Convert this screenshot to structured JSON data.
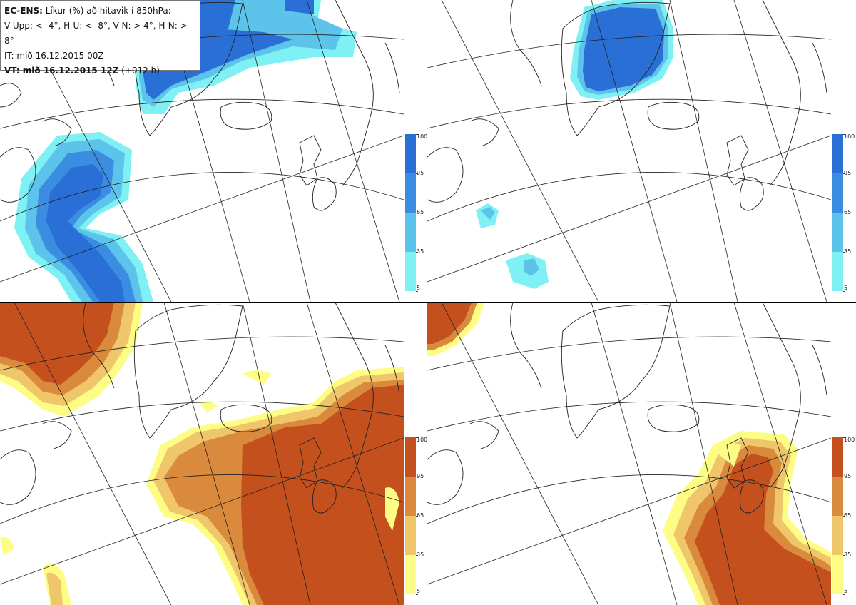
{
  "legend": {
    "line1_bold": "EC-ENS:",
    "line1_rest": " Líkur (%) að hitavik í 850hPa:",
    "line2": "V-Upp: < -4°, H-U: < -8°, V-N: > 4°, H-N: > 8°",
    "line3": "IT: mið 16.12.2015 00Z",
    "line4_bold": "VT: mið 16.12.2015 12Z",
    "line4_rest": " (+012 h)"
  },
  "colorbars": {
    "cold": {
      "ticks": [
        "100",
        "95",
        "65",
        "35",
        "5"
      ],
      "colors": [
        "#2a6fd6",
        "#3a8de0",
        "#5cc3ea",
        "#7ff0f3"
      ]
    },
    "warm": {
      "ticks": [
        "100",
        "95",
        "65",
        "35",
        "5"
      ],
      "colors": [
        "#c3501d",
        "#d98a3c",
        "#f0c66a",
        "#fdfd86"
      ]
    }
  },
  "panels": [
    {
      "id": "top-left",
      "label": "V-Upp"
    },
    {
      "id": "top-right",
      "label": "H-U"
    },
    {
      "id": "bottom-left",
      "label": "V-N"
    },
    {
      "id": "bottom-right",
      "label": "H-N"
    }
  ]
}
